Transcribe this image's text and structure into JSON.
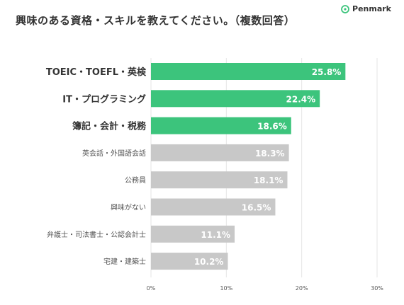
{
  "title": "興味のある資格・スキルを教えてください。（複数回答）",
  "brand": {
    "name": "Penmark"
  },
  "colors": {
    "highlight": "#3cc47c",
    "muted": "#c8c8c8",
    "grid": "#e6e6e6",
    "text_dark": "#333333",
    "text_muted": "#555555"
  },
  "chart_data": {
    "type": "bar",
    "orientation": "horizontal",
    "categories": [
      "TOEIC・TOEFL・英検",
      "IT・プログラミング",
      "簿記・会計・税務",
      "英会話・外国語会話",
      "公務員",
      "興味がない",
      "弁護士・司法書士・公認会計士",
      "宅建・建築士"
    ],
    "values": [
      25.8,
      22.4,
      18.6,
      18.3,
      18.1,
      16.5,
      11.1,
      10.2
    ],
    "value_labels": [
      "25.8%",
      "22.4%",
      "18.6%",
      "18.3%",
      "18.1%",
      "16.5%",
      "11.1%",
      "10.2%"
    ],
    "highlighted": [
      true,
      true,
      true,
      false,
      false,
      false,
      false,
      false
    ],
    "xlim": [
      0,
      30
    ],
    "xticks": [
      0,
      10,
      20,
      30
    ],
    "xtick_labels": [
      "0%",
      "10%",
      "20%",
      "30%"
    ],
    "grid": true,
    "legend": "none"
  }
}
